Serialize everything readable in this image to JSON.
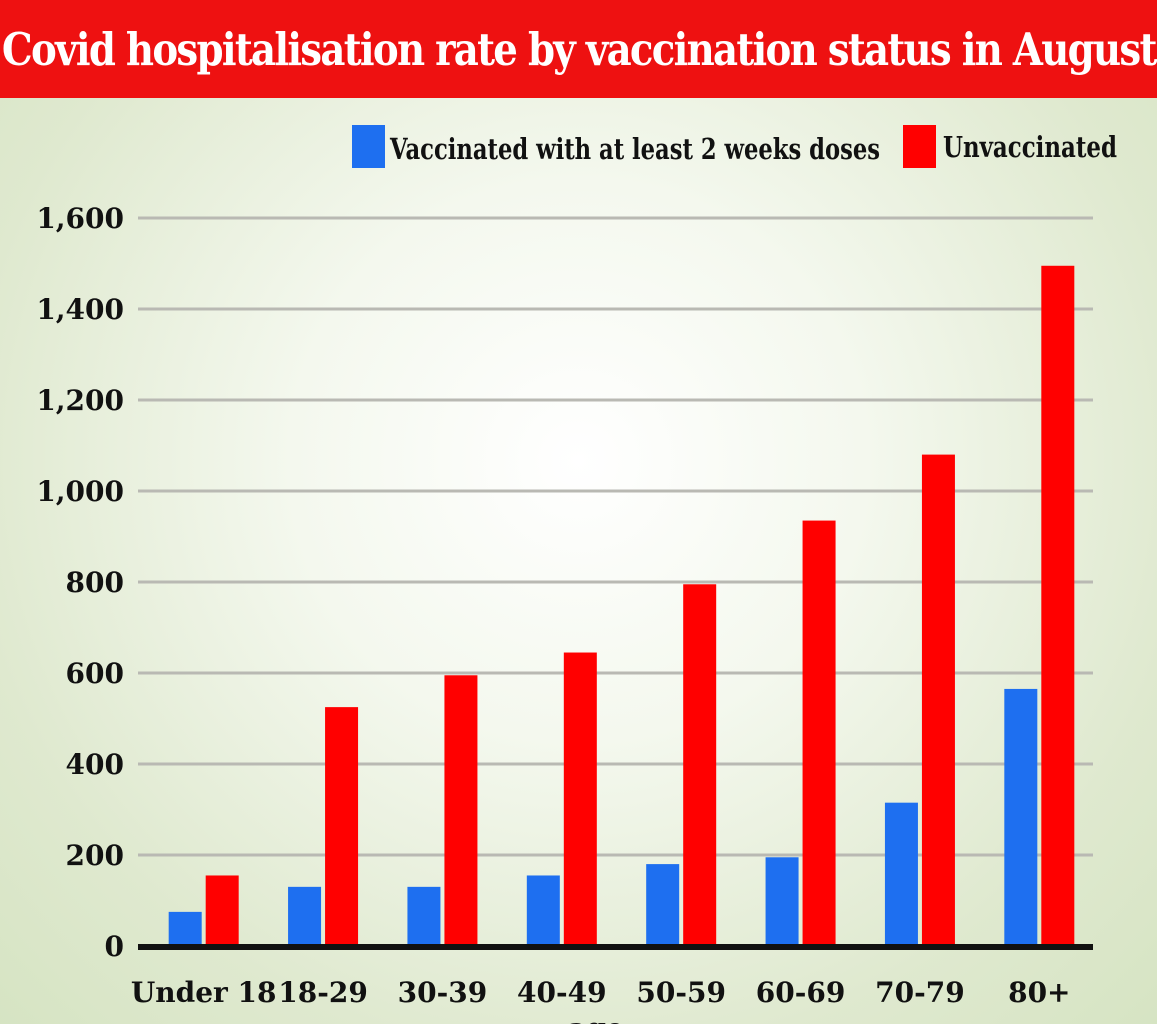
{
  "title": "Covid hospitalisation rate by vaccination status in August",
  "colors": {
    "header": "#ee1111",
    "vaccinated": "#1e6ff0",
    "unvaccinated": "#ff0000",
    "grid": "#b9b9b3",
    "axis": "#111111"
  },
  "chart_data": {
    "type": "bar",
    "title": "Covid hospitalisation rate by vaccination status in August",
    "xlabel": "age",
    "ylabel": "",
    "categories": [
      "Under 18",
      "18-29",
      "30-39",
      "40-49",
      "50-59",
      "60-69",
      "70-79",
      "80+"
    ],
    "series": [
      {
        "name": "Vaccinated with at least 2 weeks doses",
        "color": "#1e6ff0",
        "values": [
          75,
          130,
          130,
          155,
          180,
          195,
          315,
          565
        ]
      },
      {
        "name": "Unvaccinated",
        "color": "#ff0000",
        "values": [
          155,
          525,
          595,
          645,
          795,
          935,
          1080,
          1495
        ]
      }
    ],
    "ylim": [
      0,
      1600
    ],
    "yticks": [
      0,
      200,
      400,
      600,
      800,
      1000,
      1200,
      1400,
      1600
    ],
    "ytick_labels": [
      "0",
      "200",
      "400",
      "600",
      "800",
      "1,000",
      "1,200",
      "1,400",
      "1,600"
    ],
    "grid": true,
    "legend_position": "top-right"
  }
}
